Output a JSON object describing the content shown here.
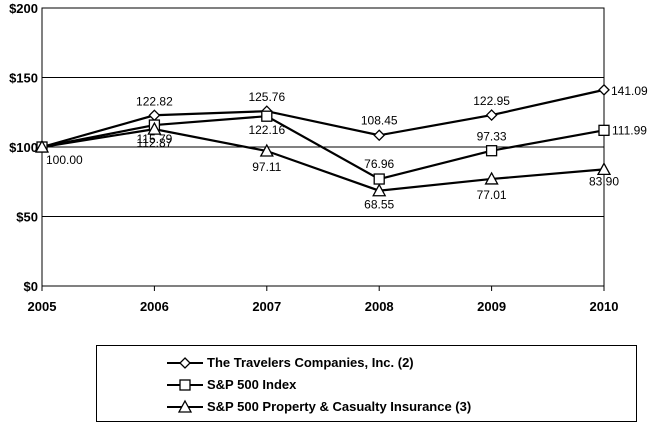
{
  "chart_data": {
    "type": "line",
    "categories": [
      "2005",
      "2006",
      "2007",
      "2008",
      "2009",
      "2010"
    ],
    "y_tick_labels": [
      "$0",
      "$50",
      "$100",
      "$150",
      "$200"
    ],
    "y_ticks": [
      0,
      50,
      100,
      150,
      200
    ],
    "ylim": [
      0,
      200
    ],
    "grid": "horizontal",
    "legend_position": "bottom",
    "series": [
      {
        "name": "The Travelers Companies, Inc. (2)",
        "marker": "diamond",
        "values": [
          100.0,
          122.82,
          125.76,
          108.45,
          122.95,
          141.09
        ],
        "labels": [
          "100.00",
          "122.82",
          "125.76",
          "108.45",
          "122.95",
          "141.09"
        ]
      },
      {
        "name": "S&P 500 Index",
        "marker": "square",
        "values": [
          100.0,
          115.79,
          122.16,
          76.96,
          97.33,
          111.99
        ],
        "labels": [
          "",
          "115.79",
          "122.16",
          "76.96",
          "97.33",
          "111.99"
        ]
      },
      {
        "name": "S&P 500 Property & Casualty Insurance (3)",
        "marker": "triangle",
        "values": [
          100.0,
          112.87,
          97.11,
          68.55,
          77.01,
          83.9
        ],
        "labels": [
          "",
          "112.87",
          "97.11",
          "68.55",
          "77.01",
          "83.90"
        ]
      }
    ]
  }
}
